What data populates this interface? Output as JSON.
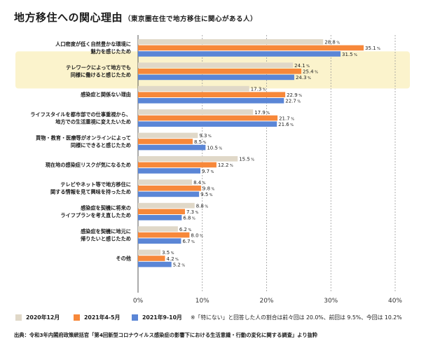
{
  "page": {
    "title": "地方移住への関心理由",
    "subtitle": "（東京圏在住で地方移住に関心がある人）",
    "note": "※「特にない」と回答した人の割合は前々回は 20.0%、前回は 9.5%、今回は 10.2%",
    "source": "出典：令和3年内閣府政策統括官「第4回新型コロナウイルス感染症の影響下における生活意識・行動の変化に関する調査」より抜粋"
  },
  "chart_data": {
    "type": "bar",
    "orientation": "horizontal",
    "title": "地方移住への関心理由",
    "categories": [
      "人口密度が低く自然豊かな環境に\n魅力を感じたため",
      "テレワークによって地方でも\n同様に働けると感じたため",
      "感染症と関係ない理由",
      "ライフスタイルを都市部での仕事重視から、\n地方での生活重視に変えたいため",
      "買物・教育・医療等がオンラインによって\n同様にできると感じたため",
      "現在地の感染症リスクが気になるため",
      "テレビやネット等で地方移住に\n関する情報を見て興味を持ったため",
      "感染症を契機に将来の\nライフプランを考え直したため",
      "感染症を契機に地元に\n帰りたいと感じたため",
      "その他"
    ],
    "highlighted_category_index": 1,
    "series": [
      {
        "name": "2020年12月",
        "color": "#e0d8c8",
        "values": [
          28.8,
          24.1,
          17.3,
          17.9,
          9.3,
          15.5,
          8.4,
          8.8,
          6.2,
          3.5
        ]
      },
      {
        "name": "2021年4-5月",
        "color": "#f7883a",
        "values": [
          35.1,
          25.4,
          22.9,
          21.7,
          8.5,
          12.2,
          9.8,
          7.3,
          8.0,
          4.2
        ]
      },
      {
        "name": "2021年9-10月",
        "color": "#5b86d6",
        "values": [
          31.5,
          24.3,
          22.7,
          21.6,
          10.5,
          9.7,
          9.5,
          6.8,
          6.7,
          5.2
        ]
      }
    ],
    "xlim": [
      0,
      40
    ],
    "xticks": [
      0,
      10,
      20,
      30,
      40
    ],
    "tick_suffix": "%",
    "value_suffix": "%",
    "highlight_color": "#fbf3cc",
    "grid": true
  }
}
